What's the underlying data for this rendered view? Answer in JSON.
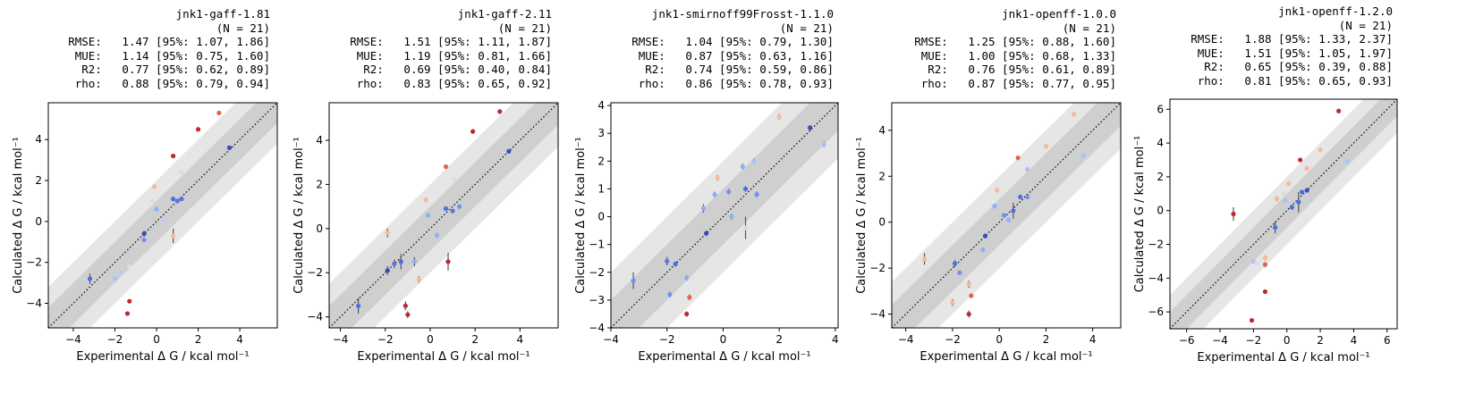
{
  "chart_data": [
    {
      "type": "scatter",
      "title": "jnk1-gaff-1.81",
      "n_label": "(N = 21)",
      "stats": [
        {
          "label": "RMSE:",
          "value": "1.47 [95%: 1.07, 1.86]"
        },
        {
          "label": "MUE:",
          "value": "1.14 [95%: 0.75, 1.60]"
        },
        {
          "label": "R2:",
          "value": "0.77 [95%: 0.62, 0.89]"
        },
        {
          "label": "rho:",
          "value": "0.88 [95%: 0.79, 0.94]"
        }
      ],
      "xlabel": "Experimental Δ G / kcal mol⁻¹",
      "ylabel": "Calculated Δ G / kcal mol⁻¹",
      "xlim": [
        -5.2,
        5.8
      ],
      "ylim": [
        -5.2,
        5.8
      ],
      "xticks": [
        -4,
        -2,
        0,
        2,
        4
      ],
      "yticks": [
        -4,
        -2,
        0,
        2,
        4
      ],
      "points": [
        {
          "x": -3.2,
          "y": -2.8,
          "err": 0.25,
          "color": "#4a6fe3"
        },
        {
          "x": -2.0,
          "y": -2.8,
          "err": 0.1,
          "color": "#a9c3fd"
        },
        {
          "x": -1.8,
          "y": -2.5,
          "err": 0.1,
          "color": "#b7cff9"
        },
        {
          "x": -1.3,
          "y": -2.2,
          "err": 0.1,
          "color": "#dcdddd"
        },
        {
          "x": -1.3,
          "y": -3.9,
          "err": 0.1,
          "color": "#c0282f"
        },
        {
          "x": -1.4,
          "y": -4.5,
          "err": 0.1,
          "color": "#c0282f"
        },
        {
          "x": -0.6,
          "y": -0.6,
          "err": 0.15,
          "color": "#3b4cc0"
        },
        {
          "x": -0.6,
          "y": -0.9,
          "err": 0.1,
          "color": "#6f92f3"
        },
        {
          "x": -0.2,
          "y": 1.0,
          "err": 0.1,
          "color": "#dcdddd"
        },
        {
          "x": -0.1,
          "y": 1.7,
          "err": 0.1,
          "color": "#f7b89c"
        },
        {
          "x": 0.0,
          "y": 0.6,
          "err": 0.1,
          "color": "#8caffe"
        },
        {
          "x": 0.3,
          "y": 0.1,
          "err": 0.1,
          "color": "#b7cff9"
        },
        {
          "x": 0.8,
          "y": 1.1,
          "err": 0.1,
          "color": "#4a6fe3"
        },
        {
          "x": 0.8,
          "y": 3.2,
          "err": 0.1,
          "color": "#c0282f"
        },
        {
          "x": 0.8,
          "y": -0.7,
          "err": 0.35,
          "color": "#f7b89c"
        },
        {
          "x": 1.0,
          "y": 1.0,
          "err": 0.1,
          "color": "#5977e3"
        },
        {
          "x": 1.2,
          "y": 2.4,
          "err": 0.1,
          "color": "#dcdddd"
        },
        {
          "x": 1.2,
          "y": 1.1,
          "err": 0.1,
          "color": "#5977e3"
        },
        {
          "x": 2.0,
          "y": 4.5,
          "err": 0.1,
          "color": "#c0282f"
        },
        {
          "x": 3.0,
          "y": 5.3,
          "err": 0.1,
          "color": "#e0654f"
        },
        {
          "x": 3.5,
          "y": 3.6,
          "err": 0.1,
          "color": "#3b4cc0"
        }
      ]
    },
    {
      "type": "scatter",
      "title": "jnk1-gaff-2.11",
      "n_label": "(N = 21)",
      "stats": [
        {
          "label": "RMSE:",
          "value": "1.51 [95%: 1.11, 1.87]"
        },
        {
          "label": "MUE:",
          "value": "1.19 [95%: 0.81, 1.66]"
        },
        {
          "label": "R2:",
          "value": "0.69 [95%: 0.40, 0.84]"
        },
        {
          "label": "rho:",
          "value": "0.83 [95%: 0.65, 0.92]"
        }
      ],
      "xlabel": "Experimental Δ G / kcal mol⁻¹",
      "ylabel": "Calculated Δ G / kcal mol⁻¹",
      "xlim": [
        -4.5,
        5.7
      ],
      "ylim": [
        -4.5,
        5.7
      ],
      "xticks": [
        -4,
        -2,
        0,
        2,
        4
      ],
      "yticks": [
        -4,
        -2,
        0,
        2,
        4
      ],
      "points": [
        {
          "x": -3.2,
          "y": -3.5,
          "err": 0.35,
          "color": "#4a6fe3"
        },
        {
          "x": -1.9,
          "y": -0.2,
          "err": 0.2,
          "color": "#f7b89c"
        },
        {
          "x": -1.9,
          "y": -1.9,
          "err": 0.2,
          "color": "#3b4cc0"
        },
        {
          "x": -1.6,
          "y": -1.6,
          "err": 0.2,
          "color": "#5977e3"
        },
        {
          "x": -1.3,
          "y": -1.5,
          "err": 0.35,
          "color": "#4a6fe3"
        },
        {
          "x": -1.1,
          "y": -3.5,
          "err": 0.2,
          "color": "#c0282f"
        },
        {
          "x": -1.0,
          "y": -3.9,
          "err": 0.15,
          "color": "#c0282f"
        },
        {
          "x": -0.7,
          "y": -1.5,
          "err": 0.2,
          "color": "#8caffe"
        },
        {
          "x": -0.5,
          "y": -2.3,
          "err": 0.15,
          "color": "#f7b89c"
        },
        {
          "x": -0.2,
          "y": 1.3,
          "err": 0.1,
          "color": "#f7b89c"
        },
        {
          "x": -0.1,
          "y": 0.6,
          "err": 0.1,
          "color": "#8caffe"
        },
        {
          "x": 0.3,
          "y": -0.3,
          "err": 0.1,
          "color": "#8caffe"
        },
        {
          "x": 0.7,
          "y": 2.8,
          "err": 0.1,
          "color": "#e0654f"
        },
        {
          "x": 0.7,
          "y": 0.9,
          "err": 0.1,
          "color": "#4a6fe3"
        },
        {
          "x": 0.8,
          "y": -1.5,
          "err": 0.4,
          "color": "#c0282f"
        },
        {
          "x": 1.0,
          "y": 0.8,
          "err": 0.1,
          "color": "#5977e3"
        },
        {
          "x": 1.1,
          "y": 2.2,
          "err": 0.1,
          "color": "#dcdddd"
        },
        {
          "x": 1.3,
          "y": 1.0,
          "err": 0.1,
          "color": "#6f92f3"
        },
        {
          "x": 1.9,
          "y": 4.4,
          "err": 0.1,
          "color": "#c0282f"
        },
        {
          "x": 3.1,
          "y": 5.3,
          "err": 0.1,
          "color": "#c0282f"
        },
        {
          "x": 3.5,
          "y": 3.5,
          "err": 0.1,
          "color": "#3b4cc0"
        }
      ]
    },
    {
      "type": "scatter",
      "title": "jnk1-smirnoff99Frosst-1.1.0",
      "n_label": "(N = 21)",
      "stats": [
        {
          "label": "RMSE:",
          "value": "1.04 [95%: 0.79, 1.30]"
        },
        {
          "label": "MUE:",
          "value": "0.87 [95%: 0.63, 1.16]"
        },
        {
          "label": "R2:",
          "value": "0.74 [95%: 0.59, 0.86]"
        },
        {
          "label": "rho:",
          "value": "0.86 [95%: 0.78, 0.93]"
        }
      ],
      "xlabel": "Experimental Δ G / kcal mol⁻¹",
      "ylabel": "Calculated Δ G / kcal mol⁻¹",
      "xlim": [
        -4.0,
        4.1
      ],
      "ylim": [
        -4.0,
        4.1
      ],
      "xticks": [
        -4,
        -2,
        0,
        2,
        4
      ],
      "yticks": [
        -4,
        -3,
        -2,
        -1,
        0,
        1,
        2,
        3,
        4
      ],
      "points": [
        {
          "x": -3.2,
          "y": -2.3,
          "err": 0.3,
          "color": "#6f92f3"
        },
        {
          "x": -2.0,
          "y": -1.6,
          "err": 0.15,
          "color": "#5977e3"
        },
        {
          "x": -1.9,
          "y": -2.8,
          "err": 0.1,
          "color": "#6f92f3"
        },
        {
          "x": -1.7,
          "y": -1.7,
          "err": 0.1,
          "color": "#4a6fe3"
        },
        {
          "x": -1.3,
          "y": -2.2,
          "err": 0.1,
          "color": "#8caffe"
        },
        {
          "x": -1.3,
          "y": -3.5,
          "err": 0.1,
          "color": "#c0282f"
        },
        {
          "x": -1.2,
          "y": -2.9,
          "err": 0.1,
          "color": "#e0654f"
        },
        {
          "x": -0.7,
          "y": 0.3,
          "err": 0.15,
          "color": "#8caffe"
        },
        {
          "x": -0.6,
          "y": -0.6,
          "err": 0.1,
          "color": "#3b4cc0"
        },
        {
          "x": -0.3,
          "y": 0.8,
          "err": 0.1,
          "color": "#8caffe"
        },
        {
          "x": -0.2,
          "y": 1.4,
          "err": 0.1,
          "color": "#f7b89c"
        },
        {
          "x": 0.2,
          "y": 0.9,
          "err": 0.1,
          "color": "#6f92f3"
        },
        {
          "x": 0.3,
          "y": 0.0,
          "err": 0.1,
          "color": "#8caffe"
        },
        {
          "x": 0.7,
          "y": 1.8,
          "err": 0.1,
          "color": "#8caffe"
        },
        {
          "x": 0.8,
          "y": -0.4,
          "err": 0.4,
          "color": "#dcdddd"
        },
        {
          "x": 0.8,
          "y": 1.0,
          "err": 0.1,
          "color": "#4a6fe3"
        },
        {
          "x": 1.1,
          "y": 2.0,
          "err": 0.1,
          "color": "#a9c3fd"
        },
        {
          "x": 1.2,
          "y": 0.8,
          "err": 0.1,
          "color": "#6f92f3"
        },
        {
          "x": 2.0,
          "y": 3.6,
          "err": 0.1,
          "color": "#f7b89c"
        },
        {
          "x": 3.1,
          "y": 3.2,
          "err": 0.1,
          "color": "#3b4cc0"
        },
        {
          "x": 3.6,
          "y": 2.6,
          "err": 0.1,
          "color": "#a9c3fd"
        }
      ]
    },
    {
      "type": "scatter",
      "title": "jnk1-openff-1.0.0",
      "n_label": "(N = 21)",
      "stats": [
        {
          "label": "RMSE:",
          "value": "1.25 [95%: 0.88, 1.60]"
        },
        {
          "label": "MUE:",
          "value": "1.00 [95%: 0.68, 1.33]"
        },
        {
          "label": "R2:",
          "value": "0.76 [95%: 0.61, 0.89]"
        },
        {
          "label": "rho:",
          "value": "0.87 [95%: 0.77, 0.95]"
        }
      ],
      "xlabel": "Experimental Δ G / kcal mol⁻¹",
      "ylabel": "Calculated Δ G / kcal mol⁻¹",
      "xlim": [
        -4.6,
        5.2
      ],
      "ylim": [
        -4.6,
        5.2
      ],
      "xticks": [
        -4,
        -2,
        0,
        2,
        4
      ],
      "yticks": [
        -4,
        -2,
        0,
        2,
        4
      ],
      "points": [
        {
          "x": -3.2,
          "y": -1.6,
          "err": 0.25,
          "color": "#f7b89c"
        },
        {
          "x": -2.0,
          "y": -3.5,
          "err": 0.15,
          "color": "#f7b89c"
        },
        {
          "x": -1.9,
          "y": -1.8,
          "err": 0.15,
          "color": "#4a6fe3"
        },
        {
          "x": -1.7,
          "y": -2.2,
          "err": 0.1,
          "color": "#6f92f3"
        },
        {
          "x": -1.3,
          "y": -2.7,
          "err": 0.15,
          "color": "#f7b89c"
        },
        {
          "x": -1.3,
          "y": -4.0,
          "err": 0.15,
          "color": "#c0282f"
        },
        {
          "x": -1.2,
          "y": -3.2,
          "err": 0.1,
          "color": "#e0654f"
        },
        {
          "x": -0.7,
          "y": -1.2,
          "err": 0.1,
          "color": "#8caffe"
        },
        {
          "x": -0.6,
          "y": -0.6,
          "err": 0.1,
          "color": "#3b4cc0"
        },
        {
          "x": -0.2,
          "y": 0.7,
          "err": 0.1,
          "color": "#8caffe"
        },
        {
          "x": -0.1,
          "y": 1.4,
          "err": 0.1,
          "color": "#f7b89c"
        },
        {
          "x": 0.2,
          "y": 0.3,
          "err": 0.1,
          "color": "#6f92f3"
        },
        {
          "x": 0.4,
          "y": 0.1,
          "err": 0.1,
          "color": "#8caffe"
        },
        {
          "x": 0.6,
          "y": 0.5,
          "err": 0.35,
          "color": "#4a6fe3"
        },
        {
          "x": 0.8,
          "y": 2.8,
          "err": 0.1,
          "color": "#e0654f"
        },
        {
          "x": 0.9,
          "y": 1.1,
          "err": 0.1,
          "color": "#4a6fe3"
        },
        {
          "x": 1.2,
          "y": 1.1,
          "err": 0.1,
          "color": "#6f92f3"
        },
        {
          "x": 1.2,
          "y": 2.3,
          "err": 0.1,
          "color": "#a9c3fd"
        },
        {
          "x": 2.0,
          "y": 3.3,
          "err": 0.1,
          "color": "#f7b89c"
        },
        {
          "x": 3.2,
          "y": 4.7,
          "err": 0.1,
          "color": "#f7b89c"
        },
        {
          "x": 3.6,
          "y": 2.9,
          "err": 0.1,
          "color": "#a9c3fd"
        }
      ]
    },
    {
      "type": "scatter",
      "title": "jnk1-openff-1.2.0",
      "n_label": "(N = 21)",
      "stats": [
        {
          "label": "RMSE:",
          "value": "1.88 [95%: 1.33, 2.37]"
        },
        {
          "label": "MUE:",
          "value": "1.51 [95%: 1.05, 1.97]"
        },
        {
          "label": "R2:",
          "value": "0.65 [95%: 0.39, 0.88]"
        },
        {
          "label": "rho:",
          "value": "0.81 [95%: 0.65, 0.93]"
        }
      ],
      "xlabel": "Experimental Δ G / kcal mol⁻¹",
      "ylabel": "Calculated Δ G / kcal mol⁻¹",
      "xlim": [
        -7.0,
        6.6
      ],
      "ylim": [
        -7.0,
        6.6
      ],
      "xticks": [
        -6,
        -4,
        -2,
        0,
        2,
        4,
        6
      ],
      "yticks": [
        -6,
        -4,
        -2,
        0,
        2,
        4,
        6
      ],
      "points": [
        {
          "x": -3.2,
          "y": -0.2,
          "err": 0.4,
          "color": "#c0282f"
        },
        {
          "x": -2.0,
          "y": -3.0,
          "err": 0.1,
          "color": "#a9c3fd"
        },
        {
          "x": -2.1,
          "y": -6.5,
          "err": 0.1,
          "color": "#c0282f"
        },
        {
          "x": -1.8,
          "y": -3.1,
          "err": 0.1,
          "color": "#dcdddd"
        },
        {
          "x": -1.3,
          "y": -2.8,
          "err": 0.15,
          "color": "#f7b89c"
        },
        {
          "x": -1.3,
          "y": -3.2,
          "err": 0.15,
          "color": "#e0654f"
        },
        {
          "x": -1.3,
          "y": -4.8,
          "err": 0.1,
          "color": "#c0282f"
        },
        {
          "x": -0.7,
          "y": -1.0,
          "err": 0.35,
          "color": "#4a6fe3"
        },
        {
          "x": -0.6,
          "y": 0.7,
          "err": 0.15,
          "color": "#f7b89c"
        },
        {
          "x": -0.2,
          "y": 1.0,
          "err": 0.1,
          "color": "#dcdddd"
        },
        {
          "x": -0.1,
          "y": 0.6,
          "err": 0.1,
          "color": "#a9c3fd"
        },
        {
          "x": 0.1,
          "y": 1.6,
          "err": 0.1,
          "color": "#f7b89c"
        },
        {
          "x": 0.3,
          "y": 0.2,
          "err": 0.15,
          "color": "#4a6fe3"
        },
        {
          "x": 0.7,
          "y": 0.5,
          "err": 0.6,
          "color": "#4a6fe3"
        },
        {
          "x": 0.8,
          "y": 3.0,
          "err": 0.1,
          "color": "#c0282f"
        },
        {
          "x": 0.9,
          "y": 1.1,
          "err": 0.1,
          "color": "#4a6fe3"
        },
        {
          "x": 1.2,
          "y": 2.5,
          "err": 0.1,
          "color": "#f7b89c"
        },
        {
          "x": 1.2,
          "y": 1.2,
          "err": 0.1,
          "color": "#3b4cc0"
        },
        {
          "x": 2.0,
          "y": 3.6,
          "err": 0.1,
          "color": "#f7b89c"
        },
        {
          "x": 3.1,
          "y": 5.9,
          "err": 0.1,
          "color": "#c0282f"
        },
        {
          "x": 3.6,
          "y": 2.9,
          "err": 0.1,
          "color": "#a9c3fd"
        }
      ]
    }
  ]
}
